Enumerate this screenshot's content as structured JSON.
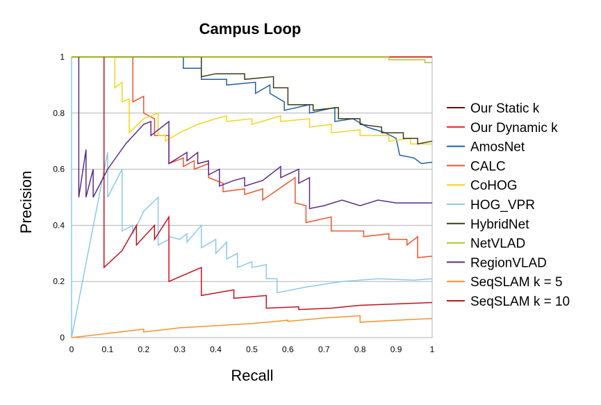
{
  "chart_data": {
    "type": "line",
    "title": "Campus Loop",
    "xlabel": "Recall",
    "ylabel": "Precision",
    "xlim": [
      0,
      1
    ],
    "ylim": [
      0,
      1
    ],
    "xticks": [
      0,
      0.1,
      0.2,
      0.3,
      0.4,
      0.5,
      0.6,
      0.7,
      0.8,
      0.9,
      1
    ],
    "yticks": [
      0,
      0.2,
      0.4,
      0.6,
      0.8,
      1
    ],
    "xtick_labels": [
      "0",
      "0.1",
      "0.2",
      "0.3",
      "0.4",
      "0.5",
      "0.6",
      "0.7",
      "0.8",
      "0.9",
      "1"
    ],
    "ytick_labels": [
      "0",
      "0.2",
      "0.4",
      "0.6",
      "0.8",
      "1"
    ],
    "grid": "horizontal",
    "legend_position": "right",
    "series": [
      {
        "name": "Our Static k",
        "color": "#800000",
        "points": [
          [
            0,
            1
          ],
          [
            1,
            1
          ]
        ]
      },
      {
        "name": "Our Dynamic k",
        "color": "#e8201a",
        "points": [
          [
            0,
            1
          ],
          [
            1,
            1
          ]
        ]
      },
      {
        "name": "AmosNet",
        "color": "#1f5da8",
        "points": [
          [
            0,
            1
          ],
          [
            0.31,
            1
          ],
          [
            0.31,
            0.96
          ],
          [
            0.36,
            0.96
          ],
          [
            0.36,
            0.92
          ],
          [
            0.43,
            0.92
          ],
          [
            0.43,
            0.9
          ],
          [
            0.51,
            0.91
          ],
          [
            0.51,
            0.87
          ],
          [
            0.55,
            0.9
          ],
          [
            0.55,
            0.87
          ],
          [
            0.59,
            0.84
          ],
          [
            0.59,
            0.81
          ],
          [
            0.66,
            0.83
          ],
          [
            0.66,
            0.8
          ],
          [
            0.73,
            0.82
          ],
          [
            0.73,
            0.77
          ],
          [
            0.78,
            0.78
          ],
          [
            0.82,
            0.75
          ],
          [
            0.87,
            0.73
          ],
          [
            0.9,
            0.71
          ],
          [
            0.91,
            0.65
          ],
          [
            0.95,
            0.64
          ],
          [
            0.97,
            0.62
          ],
          [
            1,
            0.625
          ]
        ]
      },
      {
        "name": "CALC",
        "color": "#f0522a",
        "points": [
          [
            0,
            1
          ],
          [
            0.17,
            1
          ],
          [
            0.17,
            0.84
          ],
          [
            0.2,
            0.86
          ],
          [
            0.2,
            0.8
          ],
          [
            0.23,
            0.78
          ],
          [
            0.23,
            0.72
          ],
          [
            0.27,
            0.72
          ],
          [
            0.27,
            0.62
          ],
          [
            0.31,
            0.64
          ],
          [
            0.31,
            0.61
          ],
          [
            0.34,
            0.63
          ],
          [
            0.34,
            0.6
          ],
          [
            0.38,
            0.62
          ],
          [
            0.38,
            0.57
          ],
          [
            0.42,
            0.55
          ],
          [
            0.42,
            0.52
          ],
          [
            0.48,
            0.53
          ],
          [
            0.48,
            0.51
          ],
          [
            0.53,
            0.53
          ],
          [
            0.53,
            0.49
          ],
          [
            0.62,
            0.57
          ],
          [
            0.62,
            0.48
          ],
          [
            0.65,
            0.47
          ],
          [
            0.65,
            0.41
          ],
          [
            0.72,
            0.43
          ],
          [
            0.72,
            0.38
          ],
          [
            0.81,
            0.38
          ],
          [
            0.81,
            0.36
          ],
          [
            0.88,
            0.37
          ],
          [
            0.88,
            0.35
          ],
          [
            0.93,
            0.35
          ],
          [
            0.93,
            0.33
          ],
          [
            0.96,
            0.36
          ],
          [
            0.96,
            0.285
          ],
          [
            1,
            0.29
          ]
        ]
      },
      {
        "name": "CoHOG",
        "color": "#f7d21e",
        "points": [
          [
            0,
            1
          ],
          [
            0.12,
            1
          ],
          [
            0.12,
            0.89
          ],
          [
            0.14,
            0.91
          ],
          [
            0.14,
            0.84
          ],
          [
            0.16,
            0.85
          ],
          [
            0.16,
            0.73
          ],
          [
            0.2,
            0.78
          ],
          [
            0.24,
            0.8
          ],
          [
            0.24,
            0.72
          ],
          [
            0.26,
            0.72
          ],
          [
            0.26,
            0.7
          ],
          [
            0.3,
            0.73
          ],
          [
            0.35,
            0.76
          ],
          [
            0.4,
            0.78
          ],
          [
            0.43,
            0.79
          ],
          [
            0.43,
            0.77
          ],
          [
            0.5,
            0.78
          ],
          [
            0.5,
            0.76
          ],
          [
            0.58,
            0.79
          ],
          [
            0.58,
            0.77
          ],
          [
            0.66,
            0.78
          ],
          [
            0.66,
            0.75
          ],
          [
            0.72,
            0.76
          ],
          [
            0.72,
            0.73
          ],
          [
            0.8,
            0.74
          ],
          [
            0.8,
            0.72
          ],
          [
            0.88,
            0.72
          ],
          [
            0.88,
            0.7
          ],
          [
            0.94,
            0.71
          ],
          [
            0.94,
            0.69
          ],
          [
            1,
            0.69
          ]
        ]
      },
      {
        "name": "HOG_VPR",
        "color": "#8ac8ef",
        "points": [
          [
            0,
            1
          ],
          [
            0,
            0
          ],
          [
            0.1,
            0.66
          ],
          [
            0.1,
            0.5
          ],
          [
            0.14,
            0.6
          ],
          [
            0.14,
            0.38
          ],
          [
            0.17,
            0.4
          ],
          [
            0.17,
            0.37
          ],
          [
            0.2,
            0.45
          ],
          [
            0.24,
            0.5
          ],
          [
            0.24,
            0.33
          ],
          [
            0.27,
            0.35
          ],
          [
            0.27,
            0.36
          ],
          [
            0.3,
            0.35
          ],
          [
            0.32,
            0.37
          ],
          [
            0.32,
            0.34
          ],
          [
            0.36,
            0.4
          ],
          [
            0.36,
            0.32
          ],
          [
            0.4,
            0.35
          ],
          [
            0.4,
            0.3
          ],
          [
            0.43,
            0.34
          ],
          [
            0.43,
            0.28
          ],
          [
            0.46,
            0.3
          ],
          [
            0.46,
            0.25
          ],
          [
            0.5,
            0.27
          ],
          [
            0.5,
            0.25
          ],
          [
            0.54,
            0.26
          ],
          [
            0.54,
            0.21
          ],
          [
            0.57,
            0.21
          ],
          [
            0.57,
            0.16
          ],
          [
            0.65,
            0.18
          ],
          [
            0.75,
            0.2
          ],
          [
            0.85,
            0.21
          ],
          [
            0.95,
            0.205
          ],
          [
            1,
            0.21
          ]
        ]
      },
      {
        "name": "HybridNet",
        "color": "#3b3a14",
        "points": [
          [
            0,
            1
          ],
          [
            0.36,
            1
          ],
          [
            0.36,
            0.93
          ],
          [
            0.4,
            0.94
          ],
          [
            0.48,
            0.94
          ],
          [
            0.48,
            0.92
          ],
          [
            0.56,
            0.93
          ],
          [
            0.56,
            0.89
          ],
          [
            0.6,
            0.89
          ],
          [
            0.6,
            0.83
          ],
          [
            0.67,
            0.83
          ],
          [
            0.67,
            0.81
          ],
          [
            0.74,
            0.82
          ],
          [
            0.74,
            0.78
          ],
          [
            0.8,
            0.78
          ],
          [
            0.8,
            0.76
          ],
          [
            0.86,
            0.75
          ],
          [
            0.86,
            0.73
          ],
          [
            0.92,
            0.73
          ],
          [
            0.92,
            0.71
          ],
          [
            0.96,
            0.71
          ],
          [
            0.96,
            0.69
          ],
          [
            1,
            0.7
          ]
        ]
      },
      {
        "name": "NetVLAD",
        "color": "#a6c828",
        "points": [
          [
            0,
            1
          ],
          [
            0.88,
            1
          ],
          [
            0.88,
            0.99
          ],
          [
            0.98,
            0.99
          ],
          [
            0.98,
            0.98
          ],
          [
            1,
            0.98
          ]
        ]
      },
      {
        "name": "RegionVLAD",
        "color": "#5b2a86",
        "points": [
          [
            0.02,
            1
          ],
          [
            0.02,
            0.5
          ],
          [
            0.04,
            0.67
          ],
          [
            0.04,
            0.5
          ],
          [
            0.06,
            0.6
          ],
          [
            0.06,
            0.5
          ],
          [
            0.1,
            0.6
          ],
          [
            0.15,
            0.69
          ],
          [
            0.2,
            0.76
          ],
          [
            0.22,
            0.77
          ],
          [
            0.22,
            0.72
          ],
          [
            0.26,
            0.76
          ],
          [
            0.27,
            0.77
          ],
          [
            0.27,
            0.62
          ],
          [
            0.32,
            0.66
          ],
          [
            0.32,
            0.63
          ],
          [
            0.35,
            0.66
          ],
          [
            0.35,
            0.62
          ],
          [
            0.38,
            0.63
          ],
          [
            0.38,
            0.58
          ],
          [
            0.41,
            0.6
          ],
          [
            0.41,
            0.54
          ],
          [
            0.45,
            0.56
          ],
          [
            0.48,
            0.57
          ],
          [
            0.48,
            0.54
          ],
          [
            0.53,
            0.56
          ],
          [
            0.58,
            0.61
          ],
          [
            0.58,
            0.57
          ],
          [
            0.63,
            0.6
          ],
          [
            0.63,
            0.55
          ],
          [
            0.66,
            0.57
          ],
          [
            0.66,
            0.46
          ],
          [
            0.7,
            0.47
          ],
          [
            0.75,
            0.49
          ],
          [
            0.8,
            0.47
          ],
          [
            0.85,
            0.49
          ],
          [
            0.9,
            0.48
          ],
          [
            1,
            0.48
          ]
        ]
      },
      {
        "name": "SeqSLAM k = 5",
        "color": "#f4922a",
        "points": [
          [
            0,
            0
          ],
          [
            0.2,
            0.03
          ],
          [
            0.2,
            0.02
          ],
          [
            0.3,
            0.035
          ],
          [
            0.5,
            0.05
          ],
          [
            0.6,
            0.062
          ],
          [
            0.6,
            0.058
          ],
          [
            0.7,
            0.07
          ],
          [
            0.8,
            0.078
          ],
          [
            0.8,
            0.055
          ],
          [
            0.9,
            0.062
          ],
          [
            1,
            0.068
          ]
        ]
      },
      {
        "name": "SeqSLAM k = 10",
        "color": "#c2101c",
        "points": [
          [
            0.09,
            1
          ],
          [
            0.09,
            0.25
          ],
          [
            0.14,
            0.31
          ],
          [
            0.18,
            0.4
          ],
          [
            0.18,
            0.33
          ],
          [
            0.23,
            0.4
          ],
          [
            0.23,
            0.35
          ],
          [
            0.27,
            0.43
          ],
          [
            0.27,
            0.2
          ],
          [
            0.36,
            0.25
          ],
          [
            0.36,
            0.15
          ],
          [
            0.45,
            0.17
          ],
          [
            0.45,
            0.14
          ],
          [
            0.54,
            0.15
          ],
          [
            0.54,
            0.105
          ],
          [
            0.63,
            0.11
          ],
          [
            0.63,
            0.1
          ],
          [
            0.72,
            0.105
          ],
          [
            0.8,
            0.115
          ],
          [
            0.9,
            0.12
          ],
          [
            1,
            0.125
          ]
        ]
      }
    ]
  }
}
